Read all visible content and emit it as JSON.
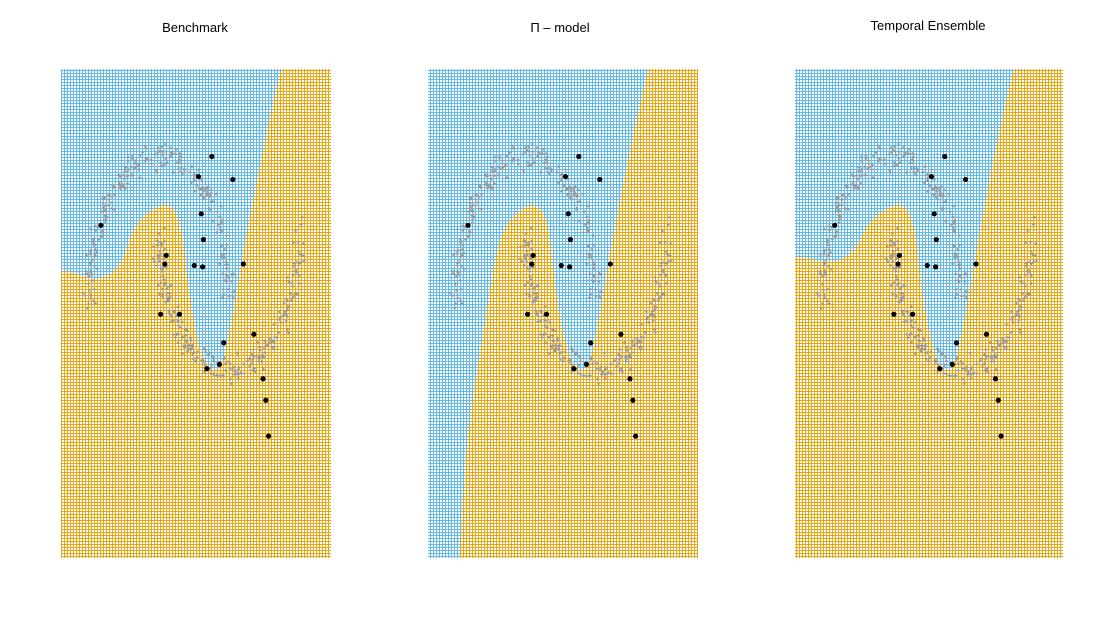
{
  "colors": {
    "class_a_region": "#56B4E9",
    "class_b_region": "#E69F00",
    "unlabeled_points": "#999999",
    "labeled_points": "#000000",
    "background": "#ffffff"
  },
  "chart_data": [
    {
      "type": "scatter",
      "title": "Benchmark",
      "xlabel": "",
      "ylabel": "",
      "grid": false,
      "legend": "none",
      "decision_boundary": {
        "note": "region left/top of boundary is class_a (blue); right/bottom is class_b (orange)",
        "x": [
          -1.3,
          -0.84,
          -0.52,
          -0.38,
          -0.1,
          0.17,
          0.33,
          0.41,
          0.55,
          0.7,
          0.89,
          1.08,
          1.22,
          1.4,
          1.58,
          1.74
        ],
        "y": [
          0.2,
          0.13,
          0.25,
          0.5,
          0.64,
          0.68,
          0.5,
          0.1,
          -0.3,
          -0.48,
          -0.5,
          -0.02,
          0.4,
          0.85,
          1.28,
          1.61
        ]
      },
      "labeled_points": {
        "x": [
          0.1,
          0.75,
          1.05,
          0.56,
          0.6,
          0.63,
          1.2,
          -0.83,
          0.08,
          0.29,
          0.5,
          0.62,
          1.35,
          1.48,
          1.52,
          1.56,
          0.92,
          0.68,
          0.02,
          0.86
        ],
        "y": [
          0.31,
          1.0,
          0.84,
          0.86,
          0.6,
          0.42,
          0.25,
          0.52,
          0.25,
          -0.1,
          0.24,
          0.23,
          -0.24,
          -0.55,
          -0.7,
          -0.95,
          -0.3,
          -0.48,
          -0.1,
          -0.45
        ]
      }
    },
    {
      "type": "scatter",
      "title": "Π – model",
      "xlabel": "",
      "ylabel": "",
      "grid": false,
      "legend": "none",
      "decision_boundary": {
        "note": "region left/top of boundary is class_a (blue); right/bottom is class_b (orange)",
        "x": [
          -0.95,
          -0.84,
          -0.6,
          -0.4,
          -0.1,
          0.17,
          0.33,
          0.41,
          0.55,
          0.7,
          0.89,
          1.08,
          1.22,
          1.4,
          1.58,
          1.74
        ],
        "y": [
          -1.8,
          -0.9,
          -0.2,
          0.45,
          0.63,
          0.68,
          0.5,
          0.1,
          -0.3,
          -0.48,
          -0.5,
          -0.02,
          0.4,
          0.85,
          1.28,
          1.61
        ]
      },
      "labeled_points": {
        "x": [
          0.1,
          0.75,
          1.05,
          0.56,
          0.6,
          0.63,
          1.2,
          -0.83,
          0.08,
          0.29,
          0.5,
          0.62,
          1.35,
          1.48,
          1.52,
          1.56,
          0.92,
          0.68,
          0.02,
          0.86
        ],
        "y": [
          0.31,
          1.0,
          0.84,
          0.86,
          0.6,
          0.42,
          0.25,
          0.52,
          0.25,
          -0.1,
          0.24,
          0.23,
          -0.24,
          -0.55,
          -0.7,
          -0.95,
          -0.3,
          -0.48,
          -0.1,
          -0.45
        ]
      }
    },
    {
      "type": "scatter",
      "title": "Temporal Ensemble",
      "xlabel": "",
      "ylabel": "",
      "grid": false,
      "legend": "none",
      "decision_boundary": {
        "note": "region left/top of boundary is class_a (blue); right/bottom is class_b (orange)",
        "x": [
          -1.3,
          -0.84,
          -0.52,
          -0.38,
          -0.1,
          0.17,
          0.33,
          0.41,
          0.55,
          0.7,
          0.89,
          1.08,
          1.22,
          1.4,
          1.58,
          1.74
        ],
        "y": [
          0.3,
          0.25,
          0.35,
          0.52,
          0.64,
          0.68,
          0.5,
          0.1,
          -0.3,
          -0.48,
          -0.5,
          -0.02,
          0.4,
          0.85,
          1.28,
          1.61
        ]
      },
      "labeled_points": {
        "x": [
          0.1,
          0.75,
          1.05,
          0.56,
          0.6,
          0.63,
          1.2,
          -0.83,
          0.08,
          0.29,
          0.5,
          0.62,
          1.35,
          1.48,
          1.52,
          1.56,
          0.92,
          0.68,
          0.02,
          0.86
        ],
        "y": [
          0.31,
          1.0,
          0.84,
          0.86,
          0.6,
          0.42,
          0.25,
          0.52,
          0.25,
          -0.1,
          0.24,
          0.23,
          -0.24,
          -0.55,
          -0.7,
          -0.95,
          -0.3,
          -0.48,
          -0.1,
          -0.45
        ]
      }
    }
  ]
}
